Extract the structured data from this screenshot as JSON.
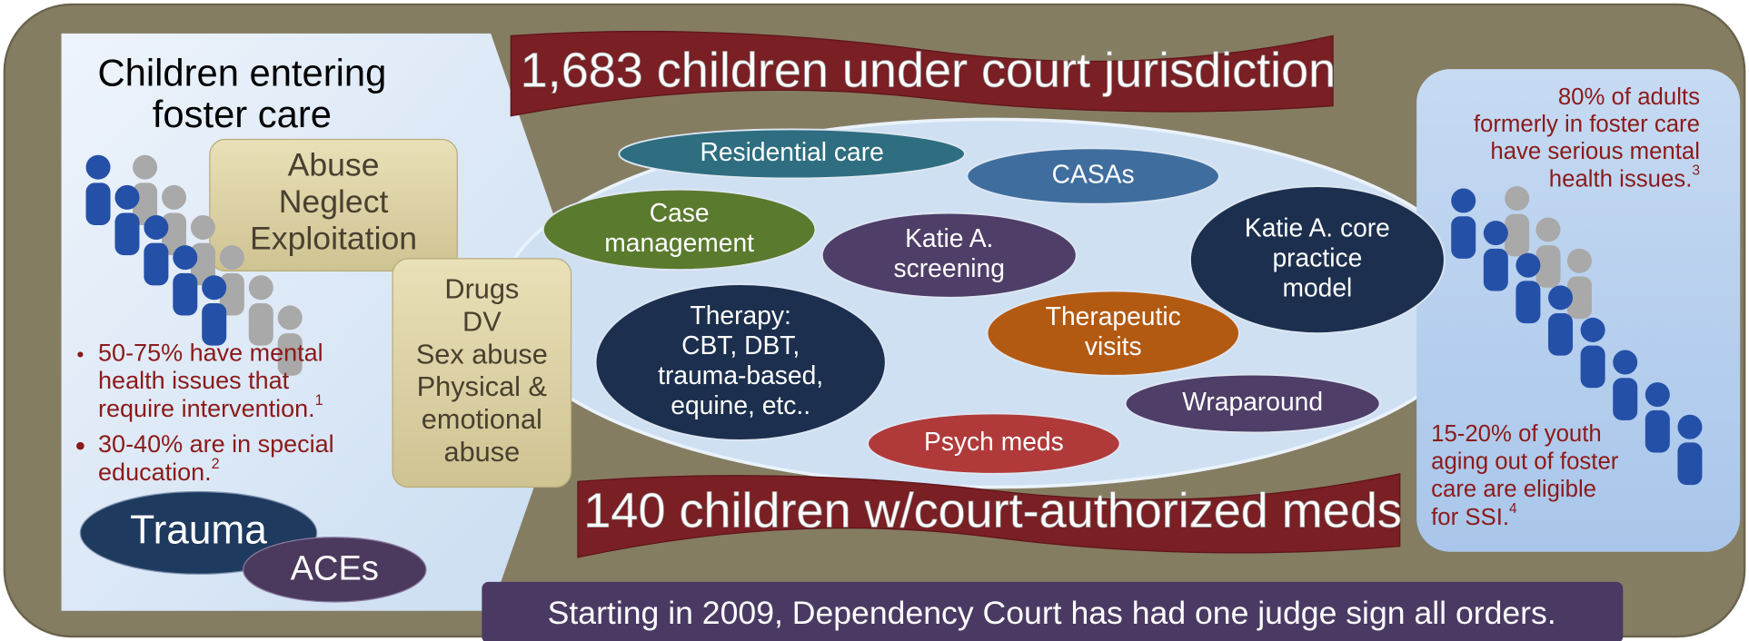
{
  "left_panel": {
    "title_lines": [
      "Children  entering",
      "foster care"
    ],
    "box1_lines": [
      "Abuse",
      "Neglect",
      "Exploitation"
    ],
    "box2_lines": [
      "Drugs",
      "DV",
      "Sex abuse",
      "Physical &",
      "emotional",
      "abuse"
    ],
    "bullets": [
      {
        "lines": [
          "50-75% have mental",
          "health issues that",
          "require intervention."
        ],
        "note": "1"
      },
      {
        "lines": [
          "30-40% are in special",
          "education."
        ],
        "note": "2"
      }
    ],
    "ovals": [
      "Trauma",
      "ACEs"
    ]
  },
  "center": {
    "top_banner": "1,683 children under court  jurisdiction",
    "bottom_banner": "140 children w/court-authorized meds",
    "ovals": [
      {
        "lines": [
          "Residential care"
        ]
      },
      {
        "lines": [
          "CASAs"
        ]
      },
      {
        "lines": [
          "Case",
          "management"
        ]
      },
      {
        "lines": [
          "Katie A.",
          "screening"
        ]
      },
      {
        "lines": [
          "Katie A. core",
          "practice",
          "model"
        ]
      },
      {
        "lines": [
          "Therapy:",
          "CBT, DBT,",
          "trauma-based,",
          "equine, etc.."
        ]
      },
      {
        "lines": [
          "Therapeutic",
          "visits"
        ]
      },
      {
        "lines": [
          "Wraparound"
        ]
      },
      {
        "lines": [
          "Psych meds"
        ]
      }
    ]
  },
  "right_panel": {
    "top_note": {
      "lines": [
        "80% of adults",
        "formerly in foster care",
        "have serious mental",
        "health issues."
      ],
      "note": "3"
    },
    "bottom_note": {
      "lines": [
        "15-20% of youth",
        "aging out of foster",
        "care are eligible",
        "for SSI."
      ],
      "note": "4"
    }
  },
  "footer": "Starting in 2009, Dependency Court has had one judge sign all orders."
}
